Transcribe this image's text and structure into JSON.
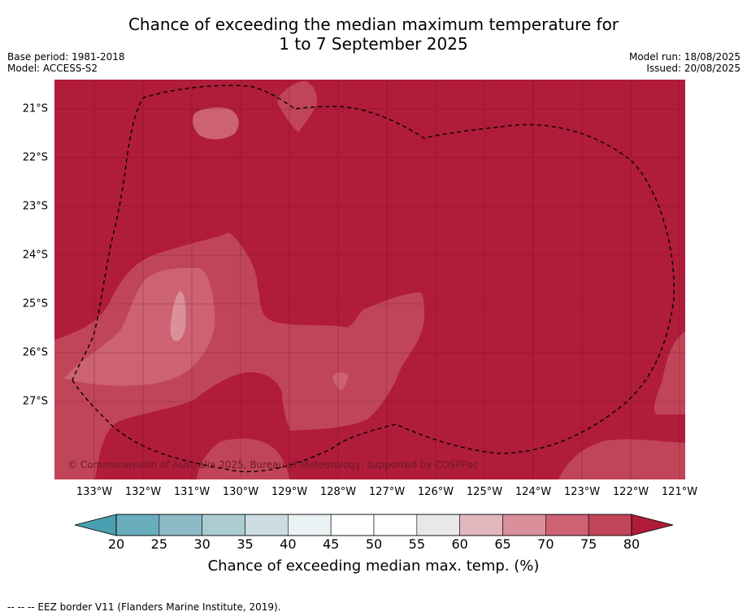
{
  "header": {
    "title_line1": "Chance of exceeding the median maximum temperature for",
    "title_line2": "1 to 7 September 2025",
    "base_period": "Base period: 1981-2018",
    "model": "Model: ACCESS-S2",
    "model_run": "Model run: 18/08/2025",
    "issued": "Issued: 20/08/2025"
  },
  "map": {
    "latitude_labels": [
      "21°S",
      "22°S",
      "23°S",
      "24°S",
      "25°S",
      "26°S",
      "27°S"
    ],
    "longitude_labels": [
      "133°W",
      "132°W",
      "131°W",
      "130°W",
      "129°W",
      "128°W",
      "127°W",
      "126°W",
      "125°W",
      "124°W",
      "123°W",
      "122°W",
      "121°W"
    ],
    "copyright": "© Commonwealth of Australia 2025, Bureau of Meteorology, supported by COSPPac",
    "colors": {
      "above_80": "#b01c3a",
      "75_80": "#c14558",
      "70_75": "#cc6272",
      "65_70": "#d9909a",
      "eez_border": "#000000"
    }
  },
  "colorbar": {
    "tick_labels": [
      "20",
      "25",
      "30",
      "35",
      "40",
      "45",
      "50",
      "55",
      "60",
      "65",
      "70",
      "75",
      "80"
    ],
    "title": "Chance of exceeding median max. temp. (%)",
    "segment_colors": [
      "#6aaebd",
      "#8cbac6",
      "#abccd2",
      "#ccdce0",
      "#ebf2f4",
      "#ffffff",
      "#ffffff",
      "#e8e8e9",
      "#e2b8be",
      "#d9909a",
      "#cc6272",
      "#c14558"
    ],
    "low_extend_color": "#4a9fb0",
    "high_extend_color": "#b01c3a"
  },
  "footnote": "--  --  -- EEZ border V11 (Flanders Marine Institute, 2019)."
}
